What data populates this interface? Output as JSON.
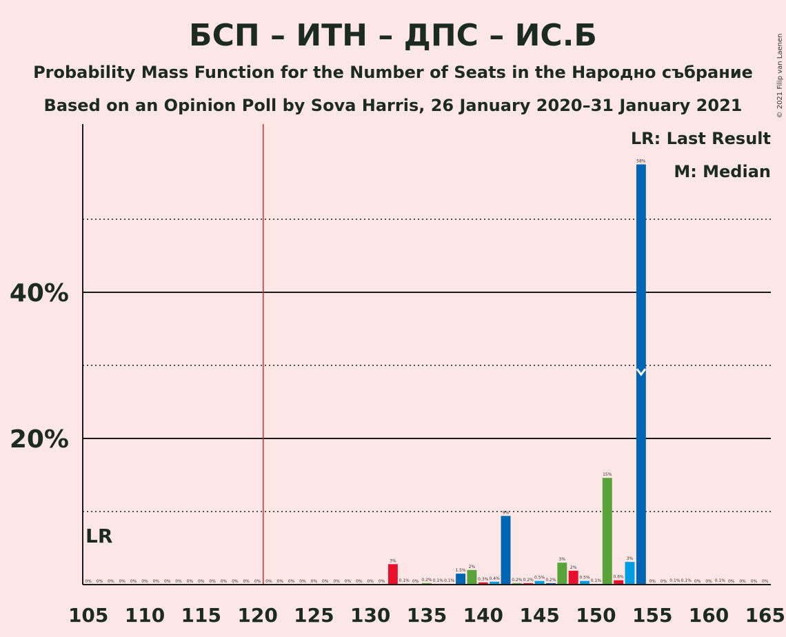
{
  "title": "БСП – ИТН – ДПС – ИС.Б",
  "subtitle1": "Probability Mass Function for the Number of Seats in the Народно събрание",
  "subtitle2": "Based on an Opinion Poll by Sova Harris, 26 January 2020–31 January 2021",
  "copyright": "© 2021 Filip van Laenen",
  "legend": {
    "lr": "LR: Last Result",
    "median": "M: Median"
  },
  "lr_marker_label": "LR",
  "colors": {
    "background": "#fde6e6",
    "bsp": "#e8112d",
    "itn": "#009ee0",
    "dps": "#0066b3",
    "isb": "#5aa33b",
    "last_result_line": "#d22b2b"
  },
  "chart_data": {
    "type": "bar",
    "x_min": 105,
    "x_max": 165,
    "ylim": [
      0,
      62
    ],
    "yticks": [
      {
        "value": 20,
        "label": "20%"
      },
      {
        "value": 40,
        "label": "40%"
      }
    ],
    "dotted_lines": [
      10,
      30,
      50
    ],
    "xticks": [
      105,
      110,
      115,
      120,
      125,
      130,
      135,
      140,
      145,
      150,
      155,
      160,
      165
    ],
    "last_result": 120.5,
    "median": 154,
    "bars": [
      {
        "seats": 105,
        "value": 0,
        "label": "0%",
        "party": "dps"
      },
      {
        "seats": 106,
        "value": 0,
        "label": "0%",
        "party": "dps"
      },
      {
        "seats": 107,
        "value": 0,
        "label": "0%",
        "party": "dps"
      },
      {
        "seats": 108,
        "value": 0,
        "label": "0%",
        "party": "dps"
      },
      {
        "seats": 109,
        "value": 0,
        "label": "0%",
        "party": "dps"
      },
      {
        "seats": 110,
        "value": 0,
        "label": "0%",
        "party": "dps"
      },
      {
        "seats": 111,
        "value": 0,
        "label": "0%",
        "party": "dps"
      },
      {
        "seats": 112,
        "value": 0,
        "label": "0%",
        "party": "dps"
      },
      {
        "seats": 113,
        "value": 0,
        "label": "0%",
        "party": "dps"
      },
      {
        "seats": 114,
        "value": 0,
        "label": "0%",
        "party": "dps"
      },
      {
        "seats": 115,
        "value": 0,
        "label": "0%",
        "party": "dps"
      },
      {
        "seats": 116,
        "value": 0,
        "label": "0%",
        "party": "dps"
      },
      {
        "seats": 117,
        "value": 0,
        "label": "0%",
        "party": "dps"
      },
      {
        "seats": 118,
        "value": 0,
        "label": "0%",
        "party": "dps"
      },
      {
        "seats": 119,
        "value": 0,
        "label": "0%",
        "party": "dps"
      },
      {
        "seats": 120,
        "value": 0,
        "label": "0%",
        "party": "dps"
      },
      {
        "seats": 121,
        "value": 0,
        "label": "0%",
        "party": "dps"
      },
      {
        "seats": 122,
        "value": 0,
        "label": "0%",
        "party": "dps"
      },
      {
        "seats": 123,
        "value": 0,
        "label": "0%",
        "party": "dps"
      },
      {
        "seats": 124,
        "value": 0,
        "label": "0%",
        "party": "dps"
      },
      {
        "seats": 125,
        "value": 0,
        "label": "0%",
        "party": "dps"
      },
      {
        "seats": 126,
        "value": 0,
        "label": "0%",
        "party": "dps"
      },
      {
        "seats": 127,
        "value": 0,
        "label": "0%",
        "party": "dps"
      },
      {
        "seats": 128,
        "value": 0,
        "label": "0%",
        "party": "dps"
      },
      {
        "seats": 129,
        "value": 0,
        "label": "0%",
        "party": "dps"
      },
      {
        "seats": 130,
        "value": 0,
        "label": "0%",
        "party": "dps"
      },
      {
        "seats": 131,
        "value": 0,
        "label": "0%",
        "party": "dps"
      },
      {
        "seats": 132,
        "value": 2.8,
        "label": "3%",
        "party": "bsp"
      },
      {
        "seats": 133,
        "value": 0.1,
        "label": "0.1%",
        "party": "itn"
      },
      {
        "seats": 134,
        "value": 0,
        "label": "0%",
        "party": "dps"
      },
      {
        "seats": 135,
        "value": 0.2,
        "label": "0.2%",
        "party": "isb"
      },
      {
        "seats": 136,
        "value": 0.1,
        "label": "0.1%",
        "party": "bsp"
      },
      {
        "seats": 137,
        "value": 0.1,
        "label": "0.1%",
        "party": "itn"
      },
      {
        "seats": 138,
        "value": 1.5,
        "label": "1.5%",
        "party": "dps"
      },
      {
        "seats": 139,
        "value": 2.0,
        "label": "2%",
        "party": "isb"
      },
      {
        "seats": 140,
        "value": 0.3,
        "label": "0.3%",
        "party": "bsp"
      },
      {
        "seats": 141,
        "value": 0.4,
        "label": "0.4%",
        "party": "itn"
      },
      {
        "seats": 142,
        "value": 9.4,
        "label": "9%",
        "party": "dps"
      },
      {
        "seats": 143,
        "value": 0.2,
        "label": "0.2%",
        "party": "isb"
      },
      {
        "seats": 144,
        "value": 0.2,
        "label": "0.2%",
        "party": "bsp"
      },
      {
        "seats": 145,
        "value": 0.5,
        "label": "0.5%",
        "party": "itn"
      },
      {
        "seats": 146,
        "value": 0.2,
        "label": "0.2%",
        "party": "dps"
      },
      {
        "seats": 147,
        "value": 3.0,
        "label": "3%",
        "party": "isb"
      },
      {
        "seats": 148,
        "value": 1.9,
        "label": "2%",
        "party": "bsp"
      },
      {
        "seats": 149,
        "value": 0.5,
        "label": "0.5%",
        "party": "itn"
      },
      {
        "seats": 150,
        "value": 0.1,
        "label": "0.1%",
        "party": "dps"
      },
      {
        "seats": 151,
        "value": 14.6,
        "label": "15%",
        "party": "isb"
      },
      {
        "seats": 152,
        "value": 0.6,
        "label": "0.6%",
        "party": "bsp"
      },
      {
        "seats": 153,
        "value": 3.1,
        "label": "3%",
        "party": "itn"
      },
      {
        "seats": 154,
        "value": 57.5,
        "label": "58%",
        "party": "dps"
      },
      {
        "seats": 155,
        "value": 0,
        "label": "0%",
        "party": "dps"
      },
      {
        "seats": 156,
        "value": 0,
        "label": "0%",
        "party": "dps"
      },
      {
        "seats": 157,
        "value": 0.1,
        "label": "0.1%",
        "party": "dps"
      },
      {
        "seats": 158,
        "value": 0.1,
        "label": "0.1%",
        "party": "dps"
      },
      {
        "seats": 159,
        "value": 0,
        "label": "0%",
        "party": "dps"
      },
      {
        "seats": 160,
        "value": 0,
        "label": "0%",
        "party": "dps"
      },
      {
        "seats": 161,
        "value": 0.1,
        "label": "0.1%",
        "party": "dps"
      },
      {
        "seats": 162,
        "value": 0,
        "label": "0%",
        "party": "dps"
      },
      {
        "seats": 163,
        "value": 0,
        "label": "0%",
        "party": "dps"
      },
      {
        "seats": 164,
        "value": 0,
        "label": "0%",
        "party": "dps"
      },
      {
        "seats": 165,
        "value": 0,
        "label": "0%",
        "party": "dps"
      }
    ]
  }
}
